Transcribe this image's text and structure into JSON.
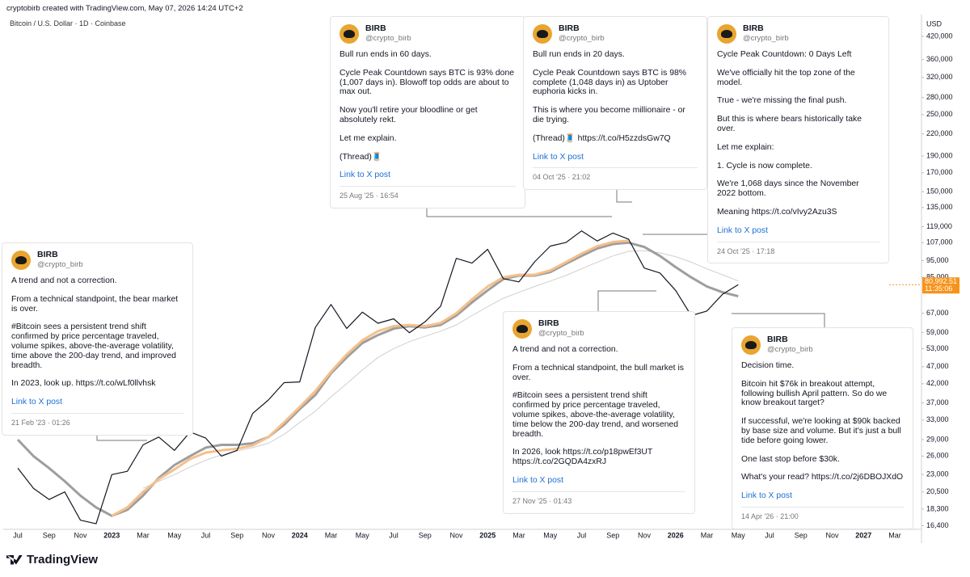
{
  "header": {
    "caption": "cryptobirb created with TradingView.com, May 07, 2026 14:24 UTC+2"
  },
  "chart_data": {
    "type": "line",
    "title": "Bitcoin / U.S. Dollar · 1D · Coinbase",
    "y_label": "USD",
    "log_scale": true,
    "categories": [
      "Jul",
      null,
      "Sep",
      null,
      "Nov",
      null,
      "2023",
      null,
      "Mar",
      null,
      "May",
      null,
      "Jul",
      null,
      "Sep",
      null,
      "Nov",
      null,
      "2024",
      null,
      "Mar",
      null,
      "May",
      null,
      "Jul",
      null,
      "Sep",
      null,
      "Nov",
      null,
      "2025",
      null,
      "Mar",
      null,
      "May",
      null,
      "Jul",
      null,
      "Sep",
      null,
      "Nov",
      null,
      "2026",
      null,
      "Mar",
      null,
      "May",
      null,
      "Jul",
      null,
      "Sep",
      null,
      "Nov",
      null,
      "2027",
      null,
      "Mar"
    ],
    "series": [
      {
        "color": "#cfcfcf",
        "width": 1,
        "values": [
          null,
          null,
          null,
          null,
          null,
          null,
          null,
          null,
          21000,
          22000,
          23000,
          24200,
          25300,
          26200,
          26900,
          27500,
          28300,
          30000,
          32500,
          35000,
          38500,
          42000,
          46000,
          50000,
          53000,
          55500,
          57500,
          59500,
          62000,
          66000,
          70000,
          74000,
          77000,
          80000,
          83000,
          86000,
          90000,
          94000,
          98000,
          101000,
          101500,
          100000,
          97500,
          94000,
          90000,
          86500,
          83000,
          null,
          null,
          null,
          null,
          null,
          null,
          null,
          null,
          null,
          null
        ]
      },
      {
        "color": "#9e9e9e",
        "width": 3,
        "values": [
          29000,
          26000,
          24000,
          22000,
          20000,
          18500,
          17500,
          18200,
          20000,
          22500,
          24500,
          26000,
          27500,
          28000,
          28000,
          28300,
          29500,
          32000,
          35500,
          39000,
          45000,
          50000,
          55000,
          58000,
          60500,
          61500,
          61000,
          62000,
          66000,
          72000,
          78000,
          84000,
          86000,
          86000,
          88000,
          93000,
          98000,
          103000,
          106000,
          107000,
          104000,
          98000,
          91000,
          85000,
          80000,
          77000,
          75000,
          null,
          null,
          null,
          null,
          null,
          null,
          null,
          null,
          null,
          null
        ]
      },
      {
        "color": "#f5c08a",
        "width": 3,
        "values": [
          null,
          null,
          null,
          null,
          null,
          null,
          17500,
          18500,
          20500,
          22300,
          23800,
          25500,
          26600,
          27000,
          27300,
          27900,
          29500,
          32500,
          36000,
          40000,
          45500,
          51000,
          56000,
          59500,
          61500,
          62000,
          61500,
          62800,
          67000,
          73500,
          80000,
          85000,
          86500,
          86500,
          89000,
          94000,
          99500,
          104500,
          107500,
          108500,
          null,
          null,
          null,
          null,
          null,
          null,
          null,
          null,
          null,
          null,
          null,
          null,
          null,
          null,
          null,
          null,
          null
        ]
      },
      {
        "color": "#131722",
        "width": 1.2,
        "values": [
          24000,
          21000,
          19500,
          20500,
          17000,
          16600,
          23000,
          23500,
          28000,
          29500,
          27000,
          30500,
          29300,
          26000,
          27000,
          34500,
          37700,
          42300,
          42500,
          61000,
          71000,
          60600,
          67500,
          62700,
          64600,
          58900,
          63300,
          70200,
          96400,
          93400,
          102400,
          84300,
          82500,
          94200,
          104600,
          107100,
          115700,
          108200,
          114000,
          109500,
          90400,
          87500,
          78000,
          66000,
          68000,
          76000,
          81000,
          null,
          null,
          null,
          null,
          null,
          null,
          null,
          null,
          null,
          null
        ]
      }
    ],
    "ylim": [
      16000,
      475000
    ],
    "yticks": [
      {
        "value": 420000,
        "label": "420,000"
      },
      {
        "value": 360000,
        "label": "360,000"
      },
      {
        "value": 320000,
        "label": "320,000"
      },
      {
        "value": 280000,
        "label": "280,000"
      },
      {
        "value": 250000,
        "label": "250,000"
      },
      {
        "value": 220000,
        "label": "220,000"
      },
      {
        "value": 190000,
        "label": "190,000"
      },
      {
        "value": 170000,
        "label": "170,000"
      },
      {
        "value": 150000,
        "label": "150,000"
      },
      {
        "value": 135000,
        "label": "135,000"
      },
      {
        "value": 119000,
        "label": "119,000"
      },
      {
        "value": 107000,
        "label": "107,000"
      },
      {
        "value": 95000,
        "label": "95,000"
      },
      {
        "value": 85000,
        "label": "85,000"
      },
      {
        "value": 67000,
        "label": "67,000"
      },
      {
        "value": 59000,
        "label": "59,000"
      },
      {
        "value": 53000,
        "label": "53,000"
      },
      {
        "value": 47000,
        "label": "47,000"
      },
      {
        "value": 42000,
        "label": "42,000"
      },
      {
        "value": 37000,
        "label": "37,000"
      },
      {
        "value": 33000,
        "label": "33,000"
      },
      {
        "value": 29000,
        "label": "29,000"
      },
      {
        "value": 26000,
        "label": "26,000"
      },
      {
        "value": 23000,
        "label": "23,000"
      },
      {
        "value": 20500,
        "label": "20,500"
      },
      {
        "value": 18300,
        "label": "18,300"
      },
      {
        "value": 16400,
        "label": "16,400"
      }
    ],
    "price_label": {
      "value": 80992.51,
      "label": "80,992.51",
      "color": "#f7931a"
    },
    "countdown": "11:35:06"
  },
  "cards": [
    {
      "name": "BIRB",
      "handle": "@crypto_birb",
      "paragraphs": [
        "Bull run ends in 60 days.",
        "Cycle Peak Countdown says BTC is 93% done (1,007 days in). Blowoff top odds are about to max out.",
        "Now you'll retire your bloodline or get absolutely rekt.",
        "Let me explain.",
        "(Thread)🧵"
      ],
      "link": "Link to X post",
      "timestamp": "25 Aug '25 · 16:54"
    },
    {
      "name": "BIRB",
      "handle": "@crypto_birb",
      "paragraphs": [
        "Bull run ends in 20 days.",
        "Cycle Peak Countdown says BTC is 98% complete (1,048 days in) as Uptober euphoria kicks in.",
        "This is where you become millionaire - or die trying.",
        "(Thread)🧵  https://t.co/H5zzdsGw7Q"
      ],
      "link": "Link to X post",
      "timestamp": "04 Oct '25 · 21:02"
    },
    {
      "name": "BIRB",
      "handle": "@crypto_birb",
      "paragraphs": [
        "Cycle Peak Countdown: 0 Days Left",
        "We've officially hit the top zone of the model.",
        "True - we're missing the final push.",
        "But this is where bears historically take over.",
        "Let me explain:",
        "1. Cycle is now complete.",
        "We're 1,068 days since the November 2022 bottom.",
        "Meaning https://t.co/vIvy2Azu3S"
      ],
      "link": "Link to X post",
      "timestamp": "24 Oct '25 · 17:18"
    },
    {
      "name": "BIRB",
      "handle": "@crypto_birb",
      "paragraphs": [
        "A trend and not a correction.",
        "From a technical standpoint, the bear market is over.",
        "#Bitcoin sees a persistent trend shift confirmed by price percentage traveled, volume spikes, above-the-average volatility, time above the 200-day trend, and improved breadth.",
        "In 2023, look up. https://t.co/wLf0llvhsk"
      ],
      "link": "Link to X post",
      "timestamp": "21 Feb '23 · 01:26"
    },
    {
      "name": "BIRB",
      "handle": "@crypto_birb",
      "paragraphs": [
        "A trend and not a correction.",
        "From a technical standpoint, the bull market is over.",
        "#Bitcoin sees a persistent trend shift confirmed by price percentage traveled, volume spikes, above-the-average volatility, time below the 200-day trend, and worsened breadth.",
        "In 2026, look https://t.co/p18pwEf3UT https://t.co/2GQDA4zxRJ"
      ],
      "link": "Link to X post",
      "timestamp": "27 Nov '25 · 01:43"
    },
    {
      "name": "BIRB",
      "handle": "@crypto_birb",
      "paragraphs": [
        "Decision time.",
        "Bitcoin hit $76k in breakout attempt, following bullish April pattern. So do we know breakout target?",
        "If successful, we're looking at $90k backed by base size and volume. But it's just a bull tide before going lower.",
        "One last stop before $30k.",
        "What's your read? https://t.co/2j6DBOJXdO"
      ],
      "link": "Link to X post",
      "timestamp": "14 Apr '26 · 21:00"
    }
  ],
  "footer": {
    "brand": "TradingView"
  }
}
